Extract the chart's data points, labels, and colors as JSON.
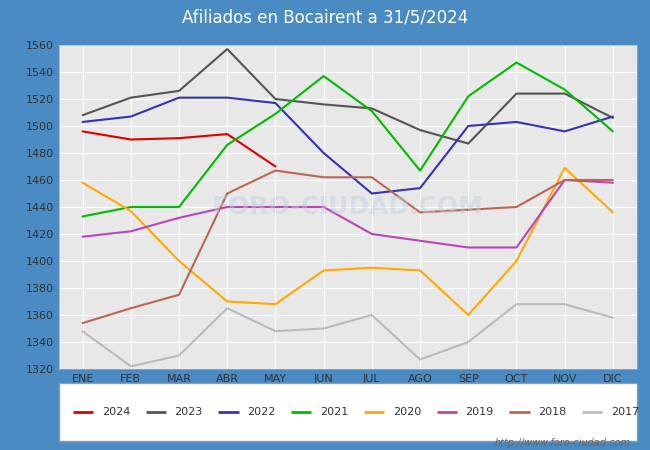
{
  "title": "Afiliados en Bocairent a 31/5/2024",
  "ylim": [
    1320,
    1560
  ],
  "yticks": [
    1320,
    1340,
    1360,
    1380,
    1400,
    1420,
    1440,
    1460,
    1480,
    1500,
    1520,
    1540,
    1560
  ],
  "months": [
    "ENE",
    "FEB",
    "MAR",
    "ABR",
    "MAY",
    "JUN",
    "JUL",
    "AGO",
    "SEP",
    "OCT",
    "NOV",
    "DIC"
  ],
  "series": {
    "2024": {
      "color": "#dd0000",
      "data": [
        1496,
        1490,
        1491,
        1494,
        1470,
        null,
        null,
        null,
        null,
        null,
        null,
        null
      ]
    },
    "2023": {
      "color": "#555555",
      "data": [
        1508,
        1521,
        1526,
        1557,
        1520,
        1516,
        1513,
        1497,
        1487,
        1524,
        1524,
        1506
      ]
    },
    "2022": {
      "color": "#3333bb",
      "data": [
        1503,
        1507,
        1521,
        1521,
        1517,
        1480,
        1450,
        1454,
        1500,
        1503,
        1496,
        1507
      ]
    },
    "2021": {
      "color": "#00bb00",
      "data": [
        1433,
        1440,
        1440,
        1486,
        1509,
        1537,
        1511,
        1467,
        1522,
        1547,
        1527,
        1496
      ]
    },
    "2020": {
      "color": "#ffaa00",
      "data": [
        1458,
        1437,
        1400,
        1370,
        1368,
        1393,
        1395,
        1393,
        1360,
        1400,
        1469,
        1436
      ]
    },
    "2019": {
      "color": "#bb44bb",
      "data": [
        1418,
        1422,
        1432,
        1440,
        1440,
        1440,
        1420,
        1415,
        1410,
        1410,
        1460,
        1458
      ]
    },
    "2018": {
      "color": "#bb6655",
      "data": [
        1354,
        1365,
        1375,
        1450,
        1467,
        1462,
        1462,
        1436,
        1438,
        1440,
        1460,
        1460
      ]
    },
    "2017": {
      "color": "#bbbbbb",
      "data": [
        1348,
        1322,
        1330,
        1365,
        1348,
        1350,
        1360,
        1327,
        1340,
        1368,
        1368,
        1358
      ]
    }
  },
  "legend_order": [
    "2024",
    "2023",
    "2022",
    "2021",
    "2020",
    "2019",
    "2018",
    "2017"
  ],
  "watermark": "http://www.foro-ciudad.com",
  "header_color": "#4a8bc4",
  "plot_bg": "#e8e8e8",
  "grid_color": "#ffffff",
  "fig_bg": "#4a8bc4"
}
